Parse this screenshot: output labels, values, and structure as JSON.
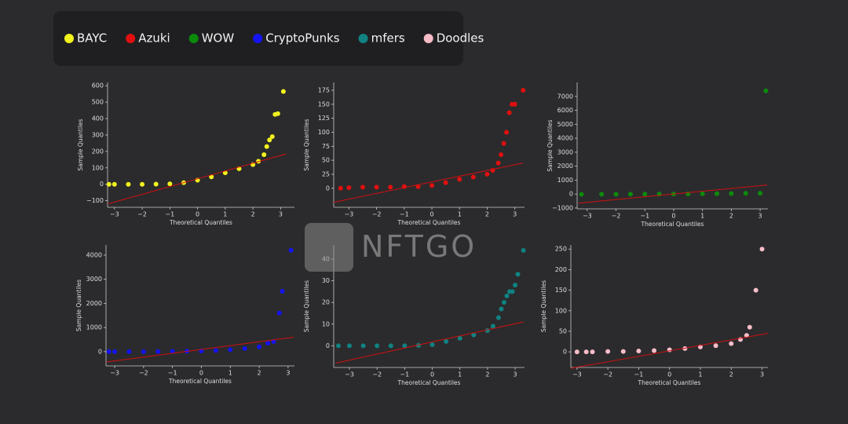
{
  "watermark": "NFTGO",
  "chart_data": [
    {
      "type": "scatter",
      "xlabel": "Theoretical Quantiles",
      "ylabel": "Sample Quantiles",
      "xlim": [
        -3.25,
        3.5
      ],
      "ylim": [
        -140,
        620
      ],
      "xticks": [
        {
          "value": -3,
          "label": "−3"
        },
        {
          "value": -2,
          "label": "−2"
        },
        {
          "value": -1,
          "label": "−1"
        },
        0,
        1,
        2,
        3
      ],
      "yticks": [
        {
          "value": -100,
          "label": "−100"
        },
        0,
        100,
        200,
        300,
        400,
        500,
        600
      ],
      "series": [
        {
          "name": "BAYC",
          "color": "#f2f21e",
          "x": [
            -3.2,
            -3,
            -2.5,
            -2,
            -1.5,
            -1,
            -0.5,
            0,
            0.5,
            1,
            1.5,
            2,
            2.2,
            2.4,
            2.5,
            2.6,
            2.7,
            2.8,
            2.9,
            3.1
          ],
          "values": [
            0,
            0,
            0,
            0,
            1,
            3,
            10,
            25,
            45,
            70,
            95,
            120,
            140,
            180,
            230,
            270,
            290,
            425,
            430,
            565
          ]
        }
      ],
      "reference_line": {
        "color": "#d01010",
        "x": [
          -3.25,
          3.2
        ],
        "values": [
          -120,
          185
        ]
      }
    },
    {
      "type": "scatter",
      "xlabel": "Theoretical Quantiles",
      "ylabel": "Sample Quantiles",
      "xlim": [
        -3.55,
        3.35
      ],
      "ylim": [
        -34,
        189
      ],
      "xticks": [
        {
          "value": -3,
          "label": "−3"
        },
        {
          "value": -2,
          "label": "−2"
        },
        {
          "value": -1,
          "label": "−1"
        },
        0,
        1,
        2,
        3
      ],
      "yticks": [
        0,
        25,
        50,
        75,
        100,
        125,
        150,
        175
      ],
      "series": [
        {
          "name": "Azuki",
          "color": "#e01010",
          "x": [
            -3.3,
            -3,
            -2.5,
            -2,
            -1.5,
            -1,
            -0.5,
            0,
            0.5,
            1,
            1.5,
            2,
            2.2,
            2.4,
            2.5,
            2.6,
            2.7,
            2.8,
            2.9,
            3.0,
            3.3
          ],
          "values": [
            0,
            1,
            2,
            2,
            2,
            3,
            3,
            5,
            10,
            16,
            20,
            25,
            32,
            45,
            60,
            80,
            100,
            135,
            150,
            150,
            175
          ]
        }
      ],
      "reference_line": {
        "color": "#d01010",
        "x": [
          -3.55,
          3.3
        ],
        "values": [
          -25,
          45
        ]
      }
    },
    {
      "type": "scatter",
      "xlabel": "Theoretical Quantiles",
      "ylabel": "Sample Quantiles",
      "xlim": [
        -3.35,
        3.27
      ],
      "ylim": [
        -1060,
        8000
      ],
      "xticks": [
        {
          "value": -3,
          "label": "−3"
        },
        {
          "value": -2,
          "label": "−2"
        },
        {
          "value": -1,
          "label": "−1"
        },
        0,
        1,
        2,
        3
      ],
      "yticks": [
        {
          "value": -1000,
          "label": "−1000"
        },
        0,
        1000,
        2000,
        3000,
        4000,
        5000,
        6000,
        7000
      ],
      "series": [
        {
          "name": "WOW",
          "color": "#0c8a0c",
          "x": [
            -3.2,
            -2.5,
            -2,
            -1.5,
            -1,
            -0.5,
            0,
            0.5,
            1,
            1.5,
            2,
            2.5,
            3,
            3.2
          ],
          "values": [
            -20,
            -15,
            -10,
            -5,
            0,
            2,
            5,
            10,
            20,
            30,
            40,
            50,
            60,
            7400
          ]
        }
      ],
      "reference_line": {
        "color": "#d01010",
        "x": [
          -3.3,
          3.25
        ],
        "values": [
          -650,
          650
        ]
      }
    },
    {
      "type": "scatter",
      "xlabel": "Theoretical Quantiles",
      "ylabel": "Sample Quantiles",
      "xlim": [
        -3.3,
        3.22
      ],
      "ylim": [
        -590,
        4420
      ],
      "xticks": [
        {
          "value": -3,
          "label": "−3"
        },
        {
          "value": -2,
          "label": "−2"
        },
        {
          "value": -1,
          "label": "−1"
        },
        0,
        1,
        2,
        3
      ],
      "yticks": [
        0,
        1000,
        2000,
        3000,
        4000
      ],
      "series": [
        {
          "name": "CryptoPunks",
          "color": "#1414f0",
          "x": [
            -3.2,
            -3,
            -2.5,
            -2,
            -1.5,
            -1,
            -0.5,
            0,
            0.5,
            1,
            1.5,
            2,
            2.3,
            2.5,
            2.7,
            2.8,
            3.1
          ],
          "values": [
            0,
            0,
            0,
            0,
            5,
            10,
            20,
            30,
            50,
            80,
            130,
            200,
            350,
            420,
            1600,
            2500,
            4200
          ]
        }
      ],
      "reference_line": {
        "color": "#d01010",
        "x": [
          -3.3,
          3.2
        ],
        "values": [
          -430,
          600
        ]
      }
    },
    {
      "type": "scatter",
      "xlabel": "Theoretical Quantiles",
      "ylabel": "Sample Quantiles",
      "xlim": [
        -3.57,
        3.34
      ],
      "ylim": [
        -10,
        46.5
      ],
      "xticks": [
        {
          "value": -3,
          "label": "−3"
        },
        {
          "value": -2,
          "label": "−2"
        },
        {
          "value": -1,
          "label": "−1"
        },
        0,
        1,
        2,
        3
      ],
      "yticks": [
        0,
        10,
        20,
        30,
        40
      ],
      "series": [
        {
          "name": "mfers",
          "color": "#108282",
          "x": [
            -3.4,
            -3,
            -2.5,
            -2,
            -1.5,
            -1,
            -0.5,
            0,
            0.5,
            1,
            1.5,
            2,
            2.2,
            2.4,
            2.5,
            2.6,
            2.7,
            2.8,
            2.9,
            3,
            3.1,
            3.3
          ],
          "values": [
            0,
            0,
            0,
            0,
            0,
            0,
            0.2,
            0.5,
            2,
            3.5,
            5,
            7,
            9,
            13,
            17,
            20,
            23,
            25,
            25,
            28,
            33,
            44
          ]
        }
      ],
      "reference_line": {
        "color": "#d01010",
        "x": [
          -3.5,
          3.3
        ],
        "values": [
          -8,
          11
        ]
      }
    },
    {
      "type": "scatter",
      "xlabel": "Theoretical Quantiles",
      "ylabel": "Sample Quantiles",
      "xlim": [
        -3.2,
        3.19
      ],
      "ylim": [
        -38,
        260
      ],
      "xticks": [
        {
          "value": -3,
          "label": "−3"
        },
        {
          "value": -2,
          "label": "−2"
        },
        {
          "value": -1,
          "label": "−1"
        },
        0,
        1,
        2,
        3
      ],
      "yticks": [
        0,
        50,
        100,
        150,
        200,
        250
      ],
      "series": [
        {
          "name": "Doodles",
          "color": "#f7bcc8",
          "x": [
            -3,
            -2.7,
            -2.5,
            -2,
            -1.5,
            -1,
            -0.5,
            0,
            0.5,
            1,
            1.5,
            2,
            2.3,
            2.5,
            2.6,
            2.8,
            3.0
          ],
          "values": [
            0,
            0,
            0,
            1,
            1,
            2,
            3,
            5,
            8,
            12,
            15,
            20,
            30,
            40,
            60,
            150,
            250
          ]
        }
      ],
      "reference_line": {
        "color": "#d01010",
        "x": [
          -3.2,
          3.2
        ],
        "values": [
          -40,
          45
        ]
      }
    }
  ]
}
